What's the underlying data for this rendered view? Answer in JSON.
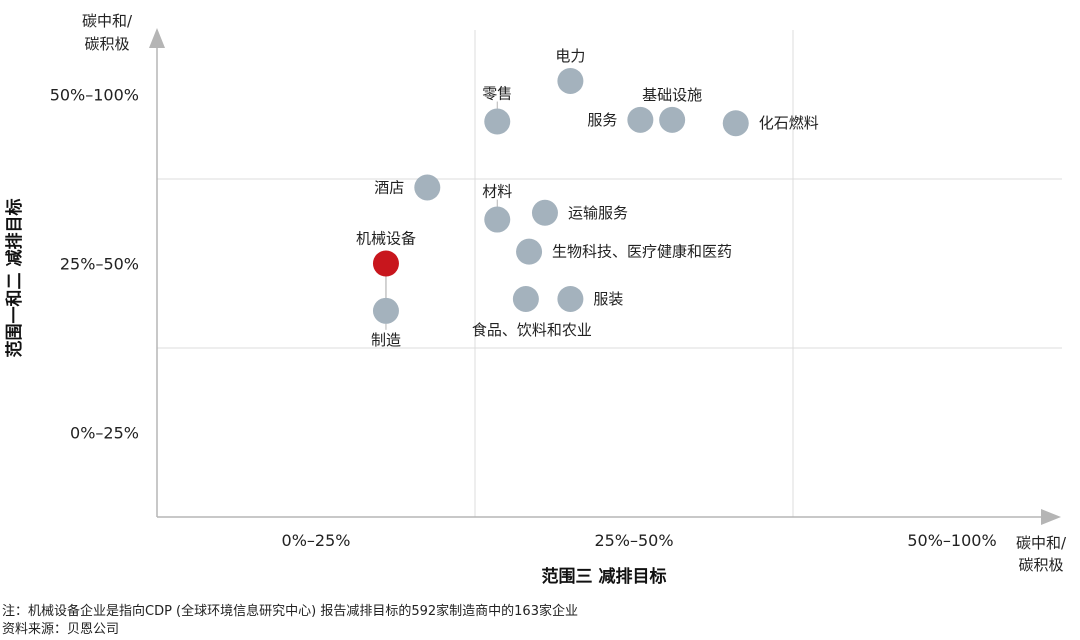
{
  "chart_data": {
    "type": "scatter",
    "xlabel": "范围三 减排目标",
    "ylabel": "范围一和二 减排目标",
    "x_categories": [
      "0%–25%",
      "25%–50%",
      "50%–100%"
    ],
    "y_categories": [
      "0%–25%",
      "25%–50%",
      "50%–100%"
    ],
    "x_end_label": [
      "碳中和/",
      "碳积极"
    ],
    "y_end_label": [
      "碳中和/",
      "碳积极"
    ],
    "grid": true,
    "colors": {
      "default_point": "#a4b2bd",
      "highlight_point": "#c8161d",
      "grid": "#dcdcdc",
      "axis": "#b5b5b5"
    },
    "points": [
      {
        "label": "电力",
        "x": 1.3,
        "y": 2.58,
        "highlight": false
      },
      {
        "label": "基础设施",
        "x": 1.62,
        "y": 2.35,
        "highlight": false
      },
      {
        "label": "服务",
        "x": 1.52,
        "y": 2.35,
        "highlight": false
      },
      {
        "label": "化石燃料",
        "x": 1.82,
        "y": 2.33,
        "highlight": false
      },
      {
        "label": "零售",
        "x": 1.07,
        "y": 2.34,
        "highlight": false
      },
      {
        "label": "酒店",
        "x": 0.85,
        "y": 1.95,
        "highlight": false
      },
      {
        "label": "材料",
        "x": 1.07,
        "y": 1.76,
        "highlight": false
      },
      {
        "label": "运输服务",
        "x": 1.22,
        "y": 1.8,
        "highlight": false
      },
      {
        "label": "生物科技、医疗健康和医药",
        "x": 1.17,
        "y": 1.57,
        "highlight": false
      },
      {
        "label": "机械设备",
        "x": 0.72,
        "y": 1.5,
        "highlight": true
      },
      {
        "label": "制造",
        "x": 0.72,
        "y": 1.22,
        "highlight": false
      },
      {
        "label": "食品、饮料和农业",
        "x": 1.16,
        "y": 1.29,
        "highlight": false
      },
      {
        "label": "服装",
        "x": 1.3,
        "y": 1.29,
        "highlight": false
      }
    ]
  },
  "footnotes": {
    "note": "注：机械设备企业是指向CDP (全球环境信息研究中心) 报告减排目标的592家制造商中的163家企业",
    "source": "资料来源：贝恩公司"
  }
}
